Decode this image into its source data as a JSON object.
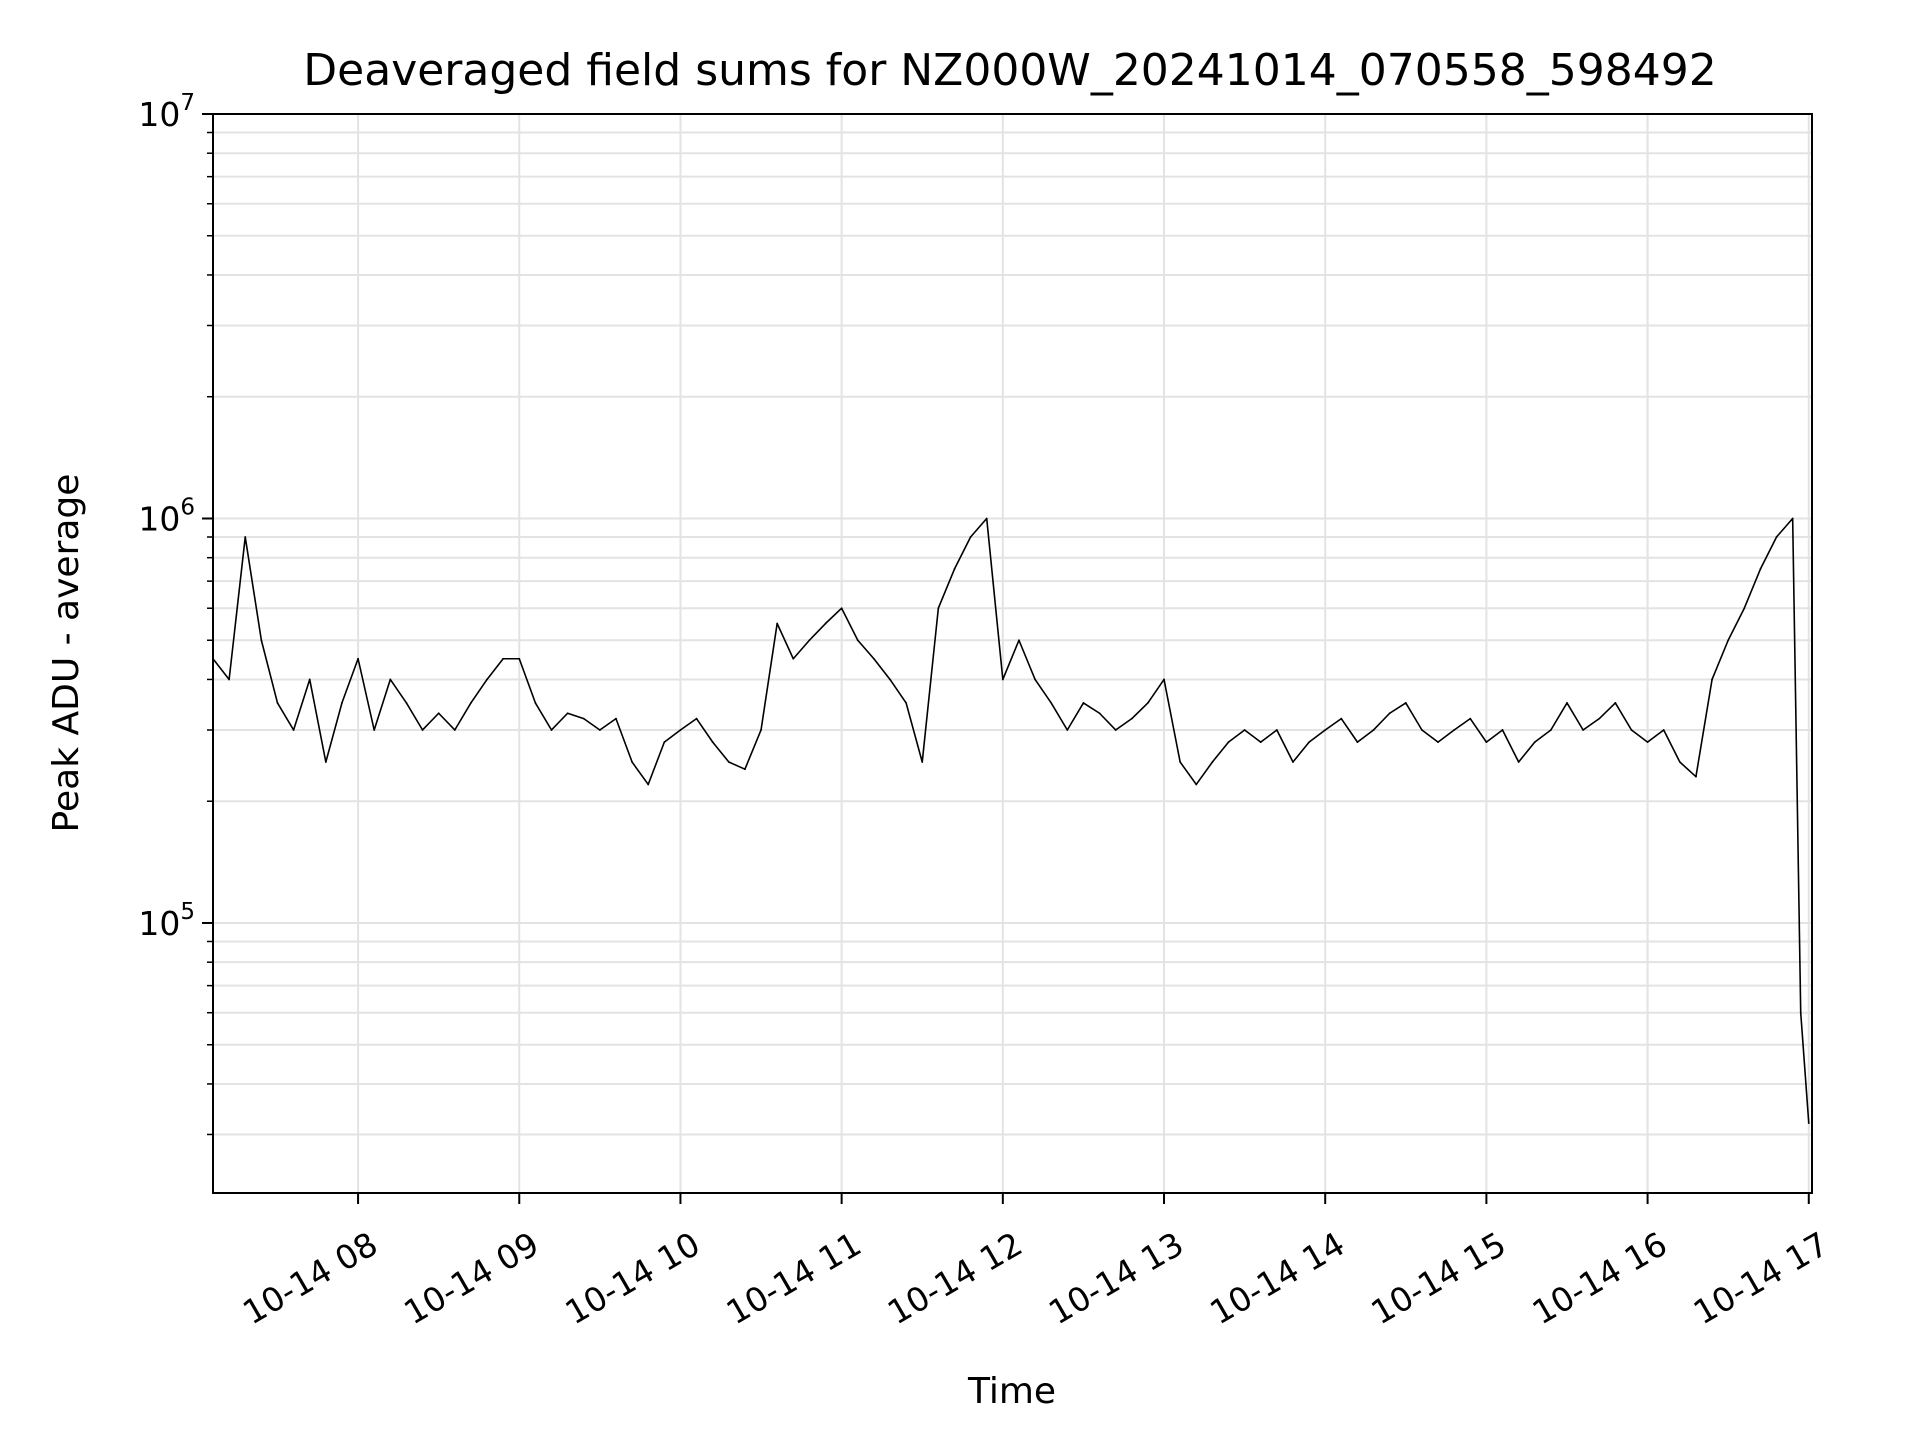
{
  "chart_data": {
    "type": "line",
    "title": "Deaveraged field sums for NZ000W_20241014_070558_598492",
    "xlabel": "Time",
    "ylabel": "Peak ADU - average",
    "yscale": "log",
    "ylim": [
      21500,
      10000000
    ],
    "xlim_hours": [
      7.1,
      17.02
    ],
    "grid": true,
    "legend": "none",
    "line_color": "#000000",
    "x_ticks": [
      {
        "label": "10-14 08",
        "hour": 8
      },
      {
        "label": "10-14 09",
        "hour": 9
      },
      {
        "label": "10-14 10",
        "hour": 10
      },
      {
        "label": "10-14 11",
        "hour": 11
      },
      {
        "label": "10-14 12",
        "hour": 12
      },
      {
        "label": "10-14 13",
        "hour": 13
      },
      {
        "label": "10-14 14",
        "hour": 14
      },
      {
        "label": "10-14 15",
        "hour": 15
      },
      {
        "label": "10-14 16",
        "hour": 16
      },
      {
        "label": "10-14 17",
        "hour": 17
      }
    ],
    "y_ticks": [
      {
        "base": "10",
        "exp": "5",
        "value": 100000
      },
      {
        "base": "10",
        "exp": "6",
        "value": 1000000
      },
      {
        "base": "10",
        "exp": "7",
        "value": 10000000
      }
    ],
    "series": [
      {
        "x_hours": [
          7.1,
          7.2,
          7.3,
          7.4,
          7.5,
          7.6,
          7.7,
          7.8,
          7.9,
          8.0,
          8.1,
          8.2,
          8.3,
          8.4,
          8.5,
          8.6,
          8.7,
          8.8,
          8.9,
          9.0,
          9.1,
          9.2,
          9.3,
          9.4,
          9.5,
          9.6,
          9.7,
          9.8,
          9.9,
          10.0,
          10.1,
          10.2,
          10.3,
          10.4,
          10.5,
          10.6,
          10.7,
          10.8,
          10.9,
          11.0,
          11.1,
          11.2,
          11.3,
          11.4,
          11.5,
          11.6,
          11.7,
          11.8,
          11.9,
          12.0,
          12.1,
          12.2,
          12.3,
          12.4,
          12.5,
          12.6,
          12.7,
          12.8,
          12.9,
          13.0,
          13.1,
          13.2,
          13.3,
          13.4,
          13.5,
          13.6,
          13.7,
          13.8,
          13.9,
          14.0,
          14.1,
          14.2,
          14.3,
          14.4,
          14.5,
          14.6,
          14.7,
          14.8,
          14.9,
          15.0,
          15.1,
          15.2,
          15.3,
          15.4,
          15.5,
          15.6,
          15.7,
          15.8,
          15.9,
          16.0,
          16.1,
          16.2,
          16.3,
          16.4,
          16.5,
          16.6,
          16.7,
          16.8,
          16.9,
          16.95,
          17.0
        ],
        "y": [
          450000,
          400000,
          900000,
          500000,
          350000,
          300000,
          400000,
          250000,
          350000,
          450000,
          300000,
          400000,
          350000,
          300000,
          330000,
          300000,
          350000,
          400000,
          450000,
          450000,
          350000,
          300000,
          330000,
          320000,
          300000,
          320000,
          250000,
          220000,
          280000,
          300000,
          320000,
          280000,
          250000,
          240000,
          300000,
          550000,
          450000,
          500000,
          550000,
          600000,
          500000,
          450000,
          400000,
          350000,
          250000,
          600000,
          750000,
          900000,
          1000000,
          400000,
          500000,
          400000,
          350000,
          300000,
          350000,
          330000,
          300000,
          320000,
          350000,
          400000,
          250000,
          220000,
          250000,
          280000,
          300000,
          280000,
          300000,
          250000,
          280000,
          300000,
          320000,
          280000,
          300000,
          330000,
          350000,
          300000,
          280000,
          300000,
          320000,
          280000,
          300000,
          250000,
          280000,
          300000,
          350000,
          300000,
          320000,
          350000,
          300000,
          280000,
          300000,
          250000,
          230000,
          400000,
          500000,
          600000,
          750000,
          900000,
          1000000,
          60000,
          32000
        ]
      }
    ]
  }
}
